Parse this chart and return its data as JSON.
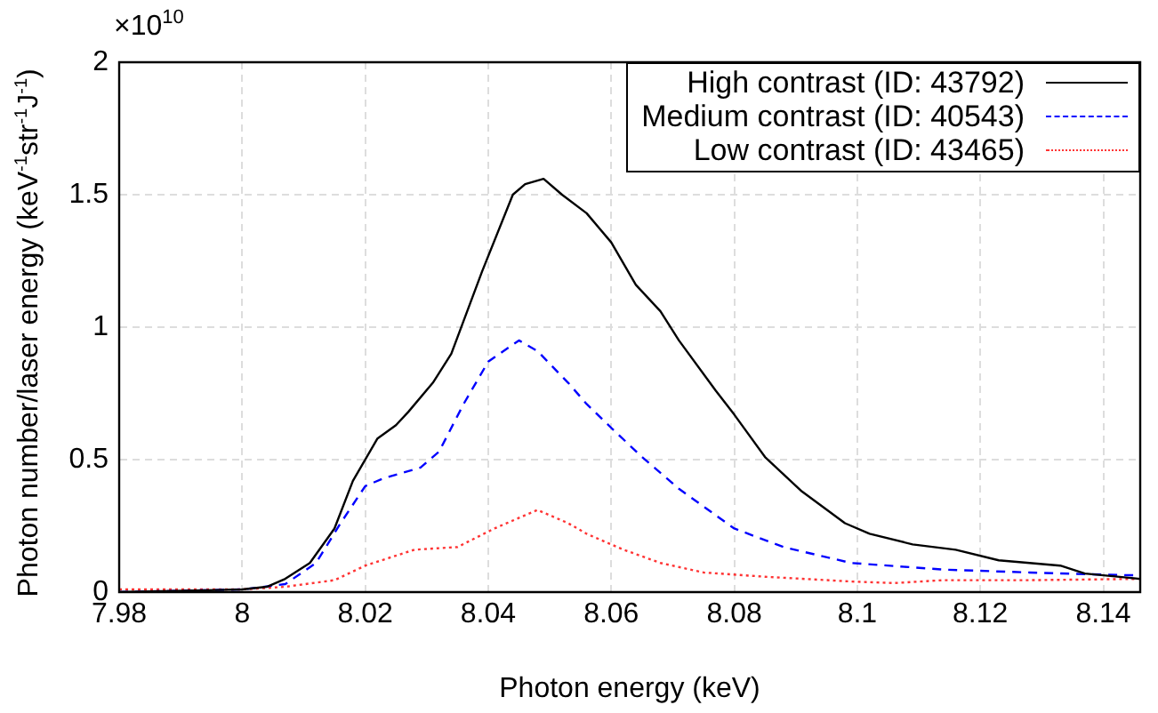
{
  "chart_data": {
    "type": "line",
    "xlabel": "Photon energy (keV)",
    "ylabel": "Photon number/laser energy (keV$^{-1}$str$^{-1}$J$^{-1}$)",
    "xlim": [
      7.98,
      8.146
    ],
    "xticks": [
      7.98,
      8,
      8.02,
      8.04,
      8.06,
      8.08,
      8.1,
      8.12,
      8.14
    ],
    "ylim": [
      0,
      2
    ],
    "yticks": [
      0,
      0.5,
      1,
      1.5,
      2
    ],
    "annotations": [
      "×10$^{10}$"
    ],
    "grid": true,
    "legend": "top right",
    "marker": "none",
    "series": [
      {
        "name": "High contrast (ID: 43792)",
        "color": "#000000",
        "line_style": "solid",
        "x": [
          7.98,
          8.0,
          8.004,
          8.007,
          8.011,
          8.015,
          8.018,
          8.022,
          8.025,
          8.027,
          8.031,
          8.034,
          8.039,
          8.044,
          8.046,
          8.049,
          8.052,
          8.056,
          8.06,
          8.064,
          8.068,
          8.071,
          8.077,
          8.08,
          8.085,
          8.091,
          8.098,
          8.102,
          8.109,
          8.116,
          8.123,
          8.133,
          8.137,
          8.146
        ],
        "values": [
          0,
          0.01,
          0.02,
          0.05,
          0.11,
          0.24,
          0.42,
          0.58,
          0.63,
          0.68,
          0.79,
          0.9,
          1.21,
          1.5,
          1.54,
          1.56,
          1.5,
          1.43,
          1.32,
          1.16,
          1.06,
          0.95,
          0.76,
          0.67,
          0.51,
          0.38,
          0.26,
          0.22,
          0.18,
          0.16,
          0.12,
          0.1,
          0.07,
          0.05
        ]
      },
      {
        "name": "Medium contrast (ID: 40543)",
        "color": "#0000ff",
        "line_style": "dashed",
        "x": [
          7.98,
          8.0,
          8.007,
          8.012,
          8.016,
          8.02,
          8.023,
          8.029,
          8.032,
          8.036,
          8.04,
          8.045,
          8.048,
          8.053,
          8.056,
          8.06,
          8.065,
          8.071,
          8.08,
          8.088,
          8.099,
          8.114,
          8.128,
          8.138,
          8.146
        ],
        "values": [
          0,
          0.01,
          0.03,
          0.11,
          0.26,
          0.4,
          0.43,
          0.47,
          0.53,
          0.71,
          0.87,
          0.95,
          0.91,
          0.79,
          0.71,
          0.62,
          0.51,
          0.39,
          0.24,
          0.17,
          0.11,
          0.085,
          0.074,
          0.067,
          0.063
        ]
      },
      {
        "name": "Low contrast (ID: 43465)",
        "color": "#ff3333",
        "line_style": "dotted",
        "x": [
          7.98,
          8.0,
          8.007,
          8.015,
          8.02,
          8.024,
          8.028,
          8.035,
          8.041,
          8.048,
          8.053,
          8.056,
          8.062,
          8.068,
          8.075,
          8.085,
          8.099,
          8.106,
          8.114,
          8.128,
          8.146
        ],
        "values": [
          0.01,
          0.01,
          0.02,
          0.045,
          0.1,
          0.13,
          0.16,
          0.17,
          0.24,
          0.31,
          0.26,
          0.22,
          0.16,
          0.11,
          0.074,
          0.058,
          0.04,
          0.034,
          0.045,
          0.045,
          0.05
        ]
      }
    ]
  }
}
